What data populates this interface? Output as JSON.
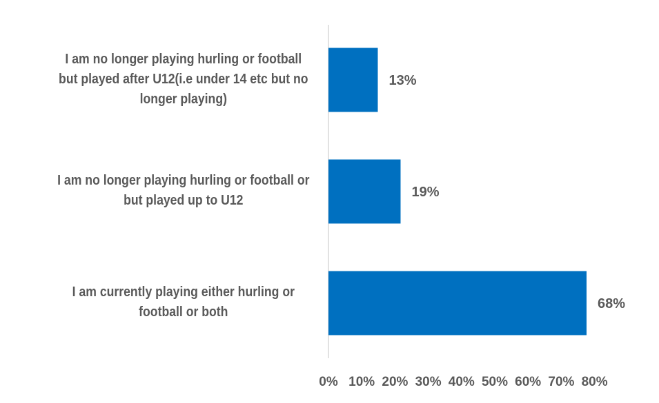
{
  "chart_data": {
    "type": "bar",
    "orientation": "horizontal",
    "categories": [
      "I am no longer playing hurling or football but played after U12(i.e under 14 etc but no longer playing)",
      "I am no longer playing hurling or football or but played up to U12",
      "I am currently playing either hurling or football or both"
    ],
    "category_lines": [
      [
        "I am no longer playing hurling or football",
        "but played after U12(i.e under 14 etc but no",
        "longer playing)"
      ],
      [
        "I am no longer playing hurling or football or",
        "but played up to U12"
      ],
      [
        "I am currently playing either hurling or",
        "football or both"
      ]
    ],
    "values": [
      13,
      19,
      68
    ],
    "data_labels": [
      "13%",
      "19%",
      "68%"
    ],
    "xlim": [
      0,
      80
    ],
    "xticks": [
      "0%",
      "10%",
      "20%",
      "30%",
      "40%",
      "50%",
      "60%",
      "70%",
      "80%"
    ],
    "title": "",
    "xlabel": "",
    "ylabel": "",
    "grid": false,
    "legend": "none",
    "colors": {
      "bar": "#0070C0",
      "text": "#595959",
      "axis": "#D9D9D9"
    }
  }
}
